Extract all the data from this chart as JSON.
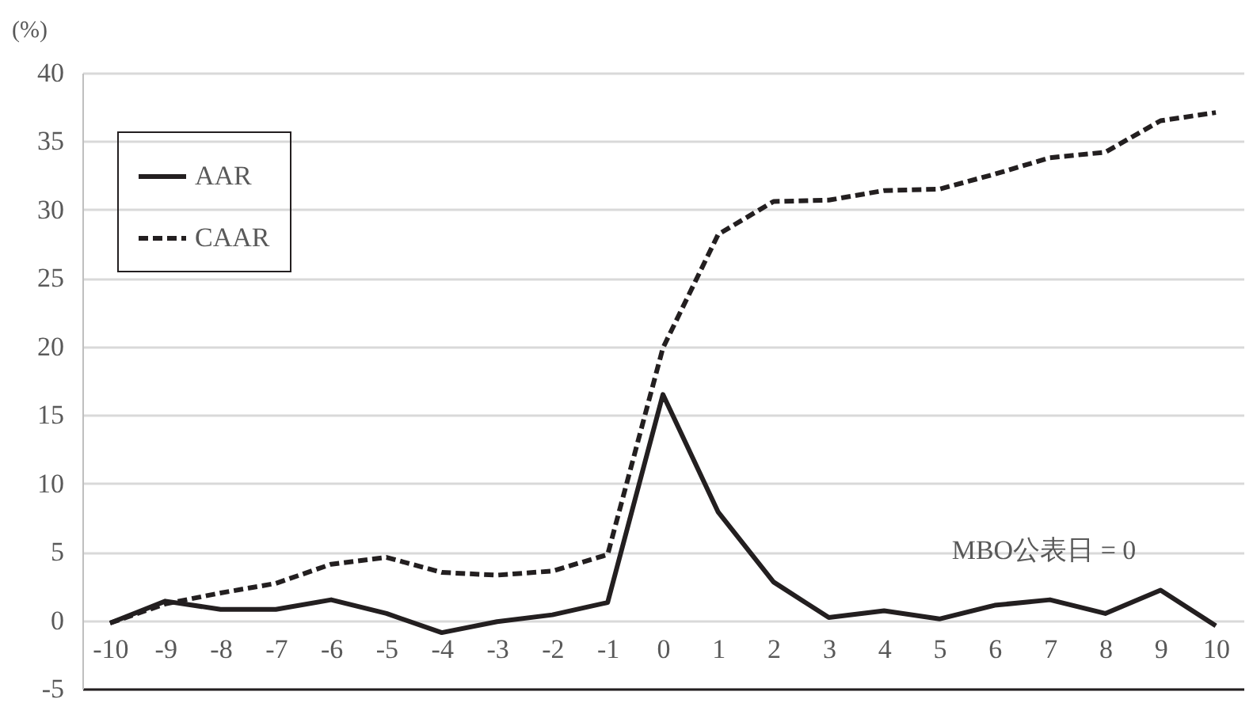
{
  "chart_data": {
    "type": "line",
    "ylabel": "(%)",
    "annotations": [
      "MBO公表日 = 0"
    ],
    "categories": [
      "-10",
      "-9",
      "-8",
      "-7",
      "-6",
      "-5",
      "-4",
      "-3",
      "-2",
      "-1",
      "0",
      "1",
      "2",
      "3",
      "4",
      "5",
      "6",
      "7",
      "8",
      "9",
      "10"
    ],
    "series": [
      {
        "name": "AAR",
        "color": "#231f20",
        "line_style": "solid",
        "values": [
          -0.2,
          1.4,
          0.8,
          0.8,
          1.5,
          0.5,
          -0.9,
          -0.1,
          0.4,
          1.3,
          16.5,
          7.9,
          2.8,
          0.2,
          0.7,
          0.1,
          1.1,
          1.5,
          0.5,
          2.2,
          -0.4
        ]
      },
      {
        "name": "CAAR",
        "color": "#231f20",
        "line_style": "dashed",
        "values": [
          -0.2,
          1.2,
          2.0,
          2.7,
          4.1,
          4.6,
          3.5,
          3.3,
          3.6,
          4.8,
          19.9,
          28.2,
          30.6,
          30.7,
          31.4,
          31.5,
          32.6,
          33.8,
          34.2,
          36.5,
          37.1
        ]
      }
    ],
    "ylim": [
      -5,
      40
    ],
    "yticks": [
      -5,
      0,
      5,
      10,
      15,
      20,
      25,
      30,
      35,
      40
    ],
    "grid": "y",
    "legend": "top left",
    "marker": "none"
  }
}
